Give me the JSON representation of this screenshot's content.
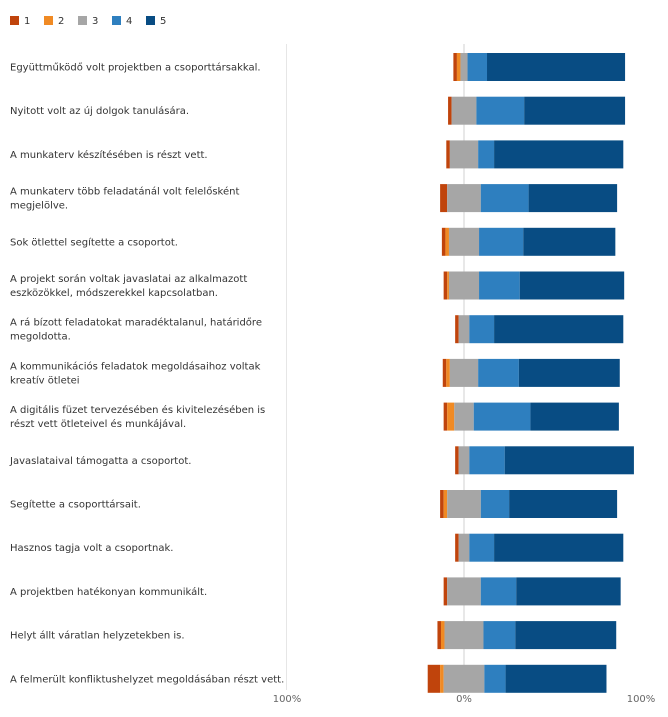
{
  "chart_data": {
    "type": "bar",
    "orientation": "horizontal",
    "stacked": true,
    "diverging": true,
    "legend_position": "top-left",
    "grid": false,
    "x_ticks": [
      "100%",
      "0%",
      "100%"
    ],
    "xlim": [
      -100,
      100
    ],
    "series": [
      {
        "name": "1",
        "color": "#c0440c"
      },
      {
        "name": "2",
        "color": "#f08a24"
      },
      {
        "name": "3",
        "color": "#a6a6a6"
      },
      {
        "name": "4",
        "color": "#2e7fbf"
      },
      {
        "name": "5",
        "color": "#084c83"
      }
    ],
    "categories": [
      [
        "Együttműködő volt projektben a csoporttársakkal."
      ],
      [
        "Nyitott volt az új dolgok tanulására."
      ],
      [
        "A munkaterv készítésében is részt vett."
      ],
      [
        "A munkaterv több feladatánál volt felelősként",
        "megjelölve."
      ],
      [
        "Sok ötlettel segítette a csoportot."
      ],
      [
        "A projekt során voltak javaslatai az alkalmazott",
        "eszközökkel, módszerekkel kapcsolatban."
      ],
      [
        "A rá bízott feladatokat maradéktalanul, határidőre",
        "megoldotta."
      ],
      [
        "A kommunikációs feladatok megoldásaihoz voltak",
        "kreatív ötletei"
      ],
      [
        "A digitális füzet tervezésében és kivitelezésében is",
        "részt vett ötleteivel és munkájával."
      ],
      [
        "Javaslataival támogatta a csoportot."
      ],
      [
        "Segítette a csoporttársait."
      ],
      [
        "Hasznos tagja volt a csoportnak."
      ],
      [
        "A projektben hatékonyan kommunikált."
      ],
      [
        "Helyt állt váratlan helyzetekben is."
      ],
      [
        "A felmerült konfliktushelyzet megoldásában részt vett."
      ]
    ],
    "values": [
      [
        2,
        2,
        4,
        11,
        78
      ],
      [
        2,
        0,
        14,
        27,
        57
      ],
      [
        2,
        0,
        16,
        9,
        73
      ],
      [
        4,
        0,
        19,
        27,
        50
      ],
      [
        2,
        2,
        17,
        25,
        52
      ],
      [
        2,
        1,
        17,
        23,
        59
      ],
      [
        2,
        0,
        6,
        14,
        73
      ],
      [
        2,
        2,
        16,
        23,
        57
      ],
      [
        2,
        4,
        11,
        32,
        50
      ],
      [
        2,
        0,
        6,
        20,
        73
      ],
      [
        2,
        2,
        19,
        16,
        61
      ],
      [
        2,
        0,
        6,
        14,
        73
      ],
      [
        2,
        0,
        19,
        20,
        59
      ],
      [
        2,
        2,
        22,
        18,
        57
      ],
      [
        7,
        2,
        23,
        12,
        57
      ]
    ]
  }
}
